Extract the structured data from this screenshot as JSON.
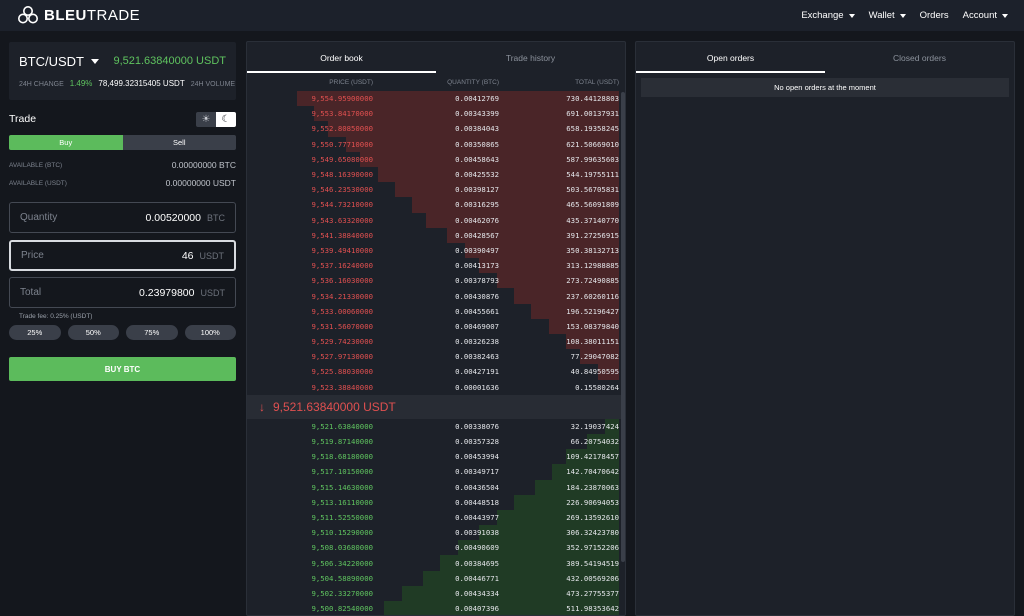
{
  "header": {
    "brand_bold": "BLEU",
    "brand_rest": "TRADE",
    "nav": [
      "Exchange",
      "Wallet",
      "Orders",
      "Account"
    ]
  },
  "ticker": {
    "pair": "BTC/USDT",
    "last_price": "9,521.63840000 USDT",
    "change_label": "24H CHANGE",
    "change_value": "1.49%",
    "volume_value": "78,499.32315405 USDT",
    "volume_label": "24H VOLUME"
  },
  "trade": {
    "title": "Trade",
    "buy_tab": "Buy",
    "sell_tab": "Sell",
    "available_btc_label": "AVAILABLE (BTC)",
    "available_btc": "0.00000000 BTC",
    "available_usdt_label": "AVAILABLE (USDT)",
    "available_usdt": "0.00000000 USDT",
    "quantity_label": "Quantity",
    "quantity_value": "0.00520000",
    "quantity_unit": "BTC",
    "price_label": "Price",
    "price_value": "46",
    "price_unit": "USDT",
    "total_label": "Total",
    "total_value": "0.23979800",
    "total_unit": "USDT",
    "fee": "Trade fee: 0.25% (USDT)",
    "percents": [
      "25%",
      "50%",
      "75%",
      "100%"
    ],
    "submit": "BUY BTC"
  },
  "orderbook": {
    "tabs": [
      "Order book",
      "Trade history"
    ],
    "columns": [
      "PRICE (USDT)",
      "QUANTITY (BTC)",
      "TOTAL (USDT)"
    ],
    "asks": [
      {
        "price": "9,554.95900000",
        "qty": "0.00412769",
        "total": "730.44128803",
        "depth": 0.92
      },
      {
        "price": "9,553.84170000",
        "qty": "0.00343399",
        "total": "691.00137931",
        "depth": 0.87
      },
      {
        "price": "9,552.80850000",
        "qty": "0.00384043",
        "total": "658.19358245",
        "depth": 0.83
      },
      {
        "price": "9,550.77710000",
        "qty": "0.00350865",
        "total": "621.50669010",
        "depth": 0.78
      },
      {
        "price": "9,549.65080000",
        "qty": "0.00458643",
        "total": "587.99635603",
        "depth": 0.74
      },
      {
        "price": "9,548.16390000",
        "qty": "0.00425532",
        "total": "544.19755111",
        "depth": 0.69
      },
      {
        "price": "9,546.23530000",
        "qty": "0.00398127",
        "total": "503.56705831",
        "depth": 0.64
      },
      {
        "price": "9,544.73210000",
        "qty": "0.00316295",
        "total": "465.56091809",
        "depth": 0.59
      },
      {
        "price": "9,543.63320000",
        "qty": "0.00462076",
        "total": "435.37140770",
        "depth": 0.55
      },
      {
        "price": "9,541.38840000",
        "qty": "0.00428567",
        "total": "391.27256915",
        "depth": 0.49
      },
      {
        "price": "9,539.49410000",
        "qty": "0.00390497",
        "total": "350.38132713",
        "depth": 0.44
      },
      {
        "price": "9,537.16240000",
        "qty": "0.00413173",
        "total": "313.12988885",
        "depth": 0.4
      },
      {
        "price": "9,536.16030000",
        "qty": "0.00378793",
        "total": "273.72490885",
        "depth": 0.35
      },
      {
        "price": "9,534.21330000",
        "qty": "0.00430876",
        "total": "237.60260116",
        "depth": 0.3
      },
      {
        "price": "9,533.00060000",
        "qty": "0.00455661",
        "total": "196.52196427",
        "depth": 0.25
      },
      {
        "price": "9,531.56070000",
        "qty": "0.00469007",
        "total": "153.08379840",
        "depth": 0.2
      },
      {
        "price": "9,529.74230000",
        "qty": "0.00326238",
        "total": "108.38011151",
        "depth": 0.15
      },
      {
        "price": "9,527.97130000",
        "qty": "0.00382463",
        "total": "77.29047082",
        "depth": 0.11
      },
      {
        "price": "9,525.88030000",
        "qty": "0.00427191",
        "total": "40.84950595",
        "depth": 0.06
      },
      {
        "price": "9,523.38840000",
        "qty": "0.00001636",
        "total": "0.15580264",
        "depth": 0.0
      }
    ],
    "mid_price": "9,521.63840000 USDT",
    "bids": [
      {
        "price": "9,521.63840000",
        "qty": "0.00338076",
        "total": "32.19037424",
        "depth": 0.04
      },
      {
        "price": "9,519.87140000",
        "qty": "0.00357328",
        "total": "66.20754032",
        "depth": 0.09
      },
      {
        "price": "9,518.68180000",
        "qty": "0.00453994",
        "total": "109.42178457",
        "depth": 0.15
      },
      {
        "price": "9,517.10150000",
        "qty": "0.00349717",
        "total": "142.70470642",
        "depth": 0.19
      },
      {
        "price": "9,515.14630000",
        "qty": "0.00436504",
        "total": "184.23870063",
        "depth": 0.24
      },
      {
        "price": "9,513.16110000",
        "qty": "0.00448518",
        "total": "226.90694053",
        "depth": 0.3
      },
      {
        "price": "9,511.52550000",
        "qty": "0.00443977",
        "total": "269.13592610",
        "depth": 0.35
      },
      {
        "price": "9,510.15290000",
        "qty": "0.00391038",
        "total": "306.32423780",
        "depth": 0.4
      },
      {
        "price": "9,508.03680000",
        "qty": "0.00490609",
        "total": "352.97152206",
        "depth": 0.46
      },
      {
        "price": "9,506.34220000",
        "qty": "0.00384695",
        "total": "389.54194519",
        "depth": 0.51
      },
      {
        "price": "9,504.58890000",
        "qty": "0.00446771",
        "total": "432.00569206",
        "depth": 0.56
      },
      {
        "price": "9,502.33270000",
        "qty": "0.00434334",
        "total": "473.27755377",
        "depth": 0.62
      },
      {
        "price": "9,500.82540000",
        "qty": "0.00407396",
        "total": "511.98353642",
        "depth": 0.67
      }
    ]
  },
  "orders": {
    "tabs": [
      "Open orders",
      "Closed orders"
    ],
    "empty_message": "No open orders at the moment"
  },
  "colors": {
    "ask": "#e05050",
    "bid": "#5fc35f",
    "accent_green": "#5cbb5c"
  }
}
